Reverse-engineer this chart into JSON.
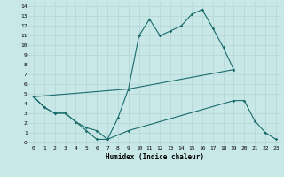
{
  "xlabel": "Humidex (Indice chaleur)",
  "bg_color": "#c8e8e8",
  "line_color": "#1a6b6b",
  "grid_color": "#d4eded",
  "x_ticks": [
    0,
    1,
    2,
    3,
    4,
    5,
    6,
    7,
    8,
    9,
    10,
    11,
    12,
    13,
    14,
    15,
    16,
    17,
    18,
    19,
    20,
    21,
    22,
    23
  ],
  "y_ticks": [
    0,
    1,
    2,
    3,
    4,
    5,
    6,
    7,
    8,
    9,
    10,
    11,
    12,
    13,
    14
  ],
  "ylim": [
    -0.3,
    14.5
  ],
  "xlim": [
    -0.5,
    23.5
  ],
  "line1_x": [
    0,
    1,
    2,
    3,
    4,
    5,
    6,
    7,
    8,
    9,
    10,
    11,
    12,
    13,
    14,
    15,
    16,
    17,
    18,
    19
  ],
  "line1_y": [
    4.7,
    3.6,
    3.0,
    3.0,
    2.1,
    1.2,
    0.3,
    0.3,
    2.5,
    5.5,
    11.0,
    12.7,
    11.0,
    11.5,
    12.0,
    13.2,
    13.7,
    11.8,
    9.8,
    7.5
  ],
  "line2_x": [
    0,
    9,
    19
  ],
  "line2_y": [
    4.7,
    5.5,
    7.5
  ],
  "line3_x": [
    0,
    1,
    2,
    3,
    4,
    5,
    6,
    7,
    9,
    19,
    20,
    21,
    22,
    23
  ],
  "line3_y": [
    4.7,
    3.6,
    3.0,
    3.0,
    2.1,
    1.5,
    1.2,
    0.3,
    1.2,
    4.3,
    4.3,
    2.2,
    1.0,
    0.3
  ]
}
